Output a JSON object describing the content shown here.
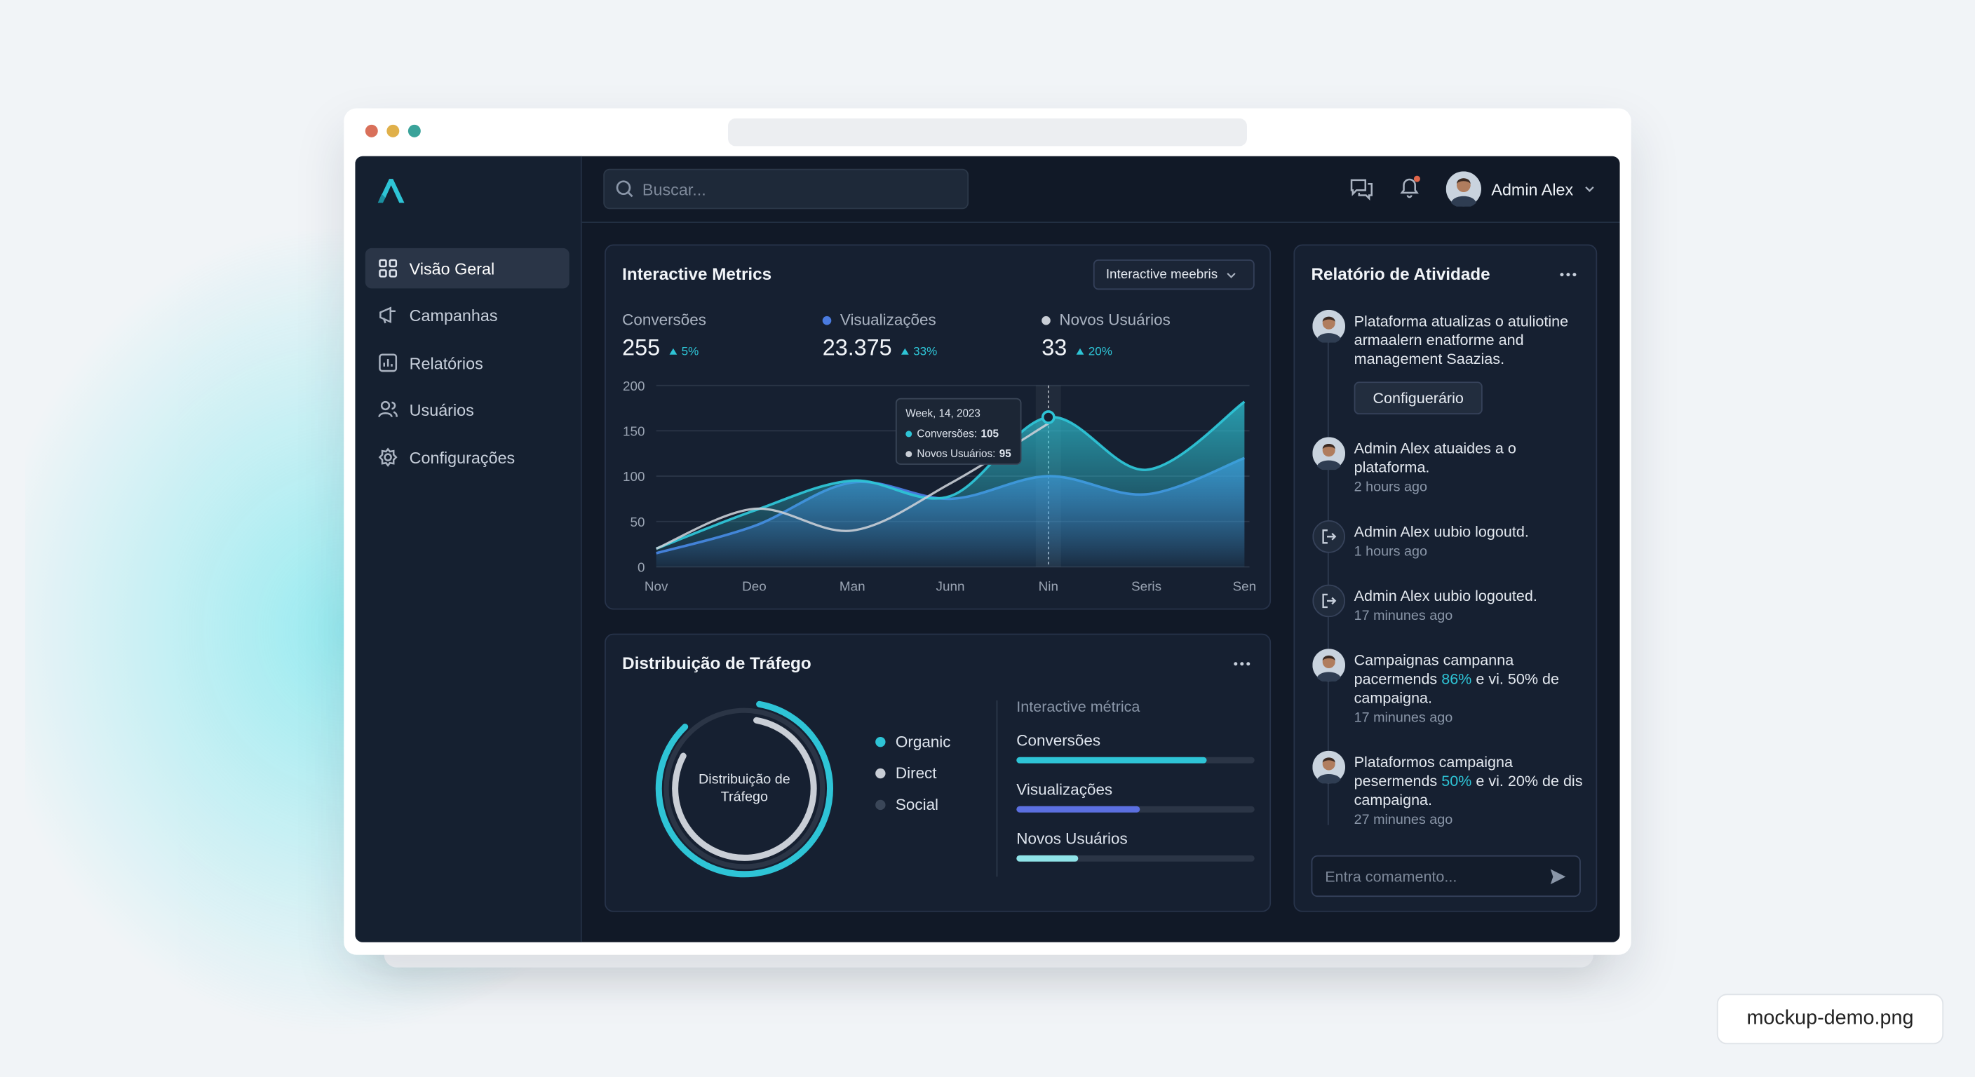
{
  "window": {
    "filename": "mockup-demo.png"
  },
  "sidebar": {
    "items": [
      "Visão Geral",
      "Campanhas",
      "Relatórios",
      "Usuários",
      "Configurações"
    ]
  },
  "topbar": {
    "search_placeholder": "Buscar...",
    "user": "Admin Alex"
  },
  "metrics": {
    "title": "Interactive Metrics",
    "dropdown": "Interactive meebris",
    "kpis": [
      {
        "label": "Conversões",
        "value": "255",
        "change": "5%"
      },
      {
        "label": "Visualizações",
        "value": "23.375",
        "change": "33%",
        "color": "#4a7be0"
      },
      {
        "label": "Novos Usuários",
        "value": "33",
        "change": "20%",
        "color": "#c9ced6"
      }
    ],
    "chart": {
      "type": "area",
      "categories": [
        "Nov",
        "Deo",
        "Man",
        "Junn",
        "Nin",
        "Seris",
        "Sen"
      ],
      "series": [
        {
          "name": "Visualizações",
          "color": "#4a7be0",
          "style": "area",
          "values": [
            15,
            45,
            93,
            75,
            100,
            80,
            120
          ]
        },
        {
          "name": "Conversões",
          "color": "#2ec4d6",
          "style": "area",
          "values": [
            20,
            62,
            95,
            78,
            165,
            107,
            182
          ]
        },
        {
          "name": "Novos Usuários",
          "color": "#c9ced6",
          "style": "line",
          "values": [
            20,
            64,
            40,
            92,
            158,
            null,
            null
          ]
        }
      ],
      "ylim": [
        0,
        200
      ],
      "yticks": [
        0,
        50,
        100,
        150,
        200
      ]
    },
    "tooltip": {
      "title": "Week, 14, 2023",
      "rows": [
        {
          "label": "Conversões:",
          "value": "105",
          "color": "#2ec4d6"
        },
        {
          "label": "Novos Usuários:",
          "value": "95",
          "color": "#c9ced6"
        }
      ]
    }
  },
  "traffic": {
    "title": "Distribuição de Tráfego",
    "center_label": "Distribuição de Tráfego",
    "legend": [
      {
        "name": "Organic",
        "color": "#2ec4d6",
        "value": 85
      },
      {
        "name": "Direct",
        "color": "#c9ced6",
        "value": 80
      },
      {
        "name": "Social",
        "color": "#2b3546",
        "value": 100
      }
    ],
    "bars_title": "Interactive métrica",
    "bars": [
      {
        "name": "Conversões",
        "value": 80,
        "color": "#2ec4d6"
      },
      {
        "name": "Visualizações",
        "value": 52,
        "color": "#5b6fe0"
      },
      {
        "name": "Novos Usuários",
        "value": 26,
        "color": "#8fe3e8"
      }
    ]
  },
  "activity": {
    "title": "Relatório de Atividade",
    "button": "Configuerário",
    "input_placeholder": "Entra comamento...",
    "items": [
      {
        "kind": "avatar",
        "parts": [
          "Plataforma atualizas o atuliotine armaalern enatforme and management Saazias."
        ]
      },
      {
        "kind": "avatar",
        "parts": [
          "Admin Alex atuaides a o plataforma."
        ],
        "time": "2 hours ago"
      },
      {
        "kind": "logout",
        "parts": [
          "Admin Alex uubio logoutd."
        ],
        "time": "1 hours ago"
      },
      {
        "kind": "logout",
        "parts": [
          "Admin Alex uubio logouted."
        ],
        "time": "17 minunes ago"
      },
      {
        "kind": "avatar",
        "parts": [
          "Campaignas campanna pacermends ",
          "86%",
          " e vi. 50% de campaigna."
        ],
        "time": "17 minunes ago"
      },
      {
        "kind": "avatar",
        "parts": [
          "Plataformos campaigna pesermends ",
          "50%",
          " e vi. 20% de dis campaigna."
        ],
        "time": "27 minunes ago"
      }
    ]
  }
}
